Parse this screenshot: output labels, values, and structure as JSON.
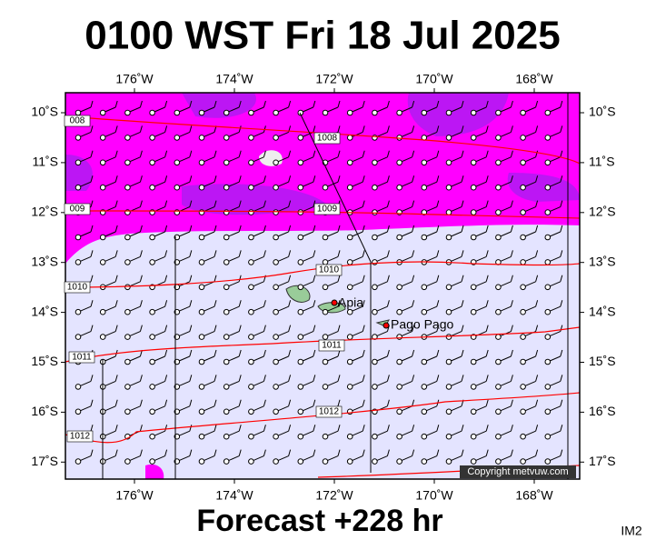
{
  "header": {
    "title": "0100 WST Fri 18 Jul 2025"
  },
  "footer": {
    "forecast": "Forecast +228 hr",
    "id": "IM2"
  },
  "map": {
    "lon_labels": [
      "176˚W",
      "174˚W",
      "172˚W",
      "170˚W",
      "168˚W"
    ],
    "lat_labels": [
      "10˚S",
      "11˚S",
      "12˚S",
      "13˚S",
      "14˚S",
      "15˚S",
      "16˚S",
      "17˚S"
    ],
    "isobar_labels": [
      "008",
      "1008",
      "009",
      "1009",
      "1010",
      "1010",
      "1011",
      "1011",
      "1012",
      "1012"
    ],
    "places": [
      "Apia",
      "Pago Pago"
    ],
    "copyright": "Copyright metvuw.com"
  }
}
